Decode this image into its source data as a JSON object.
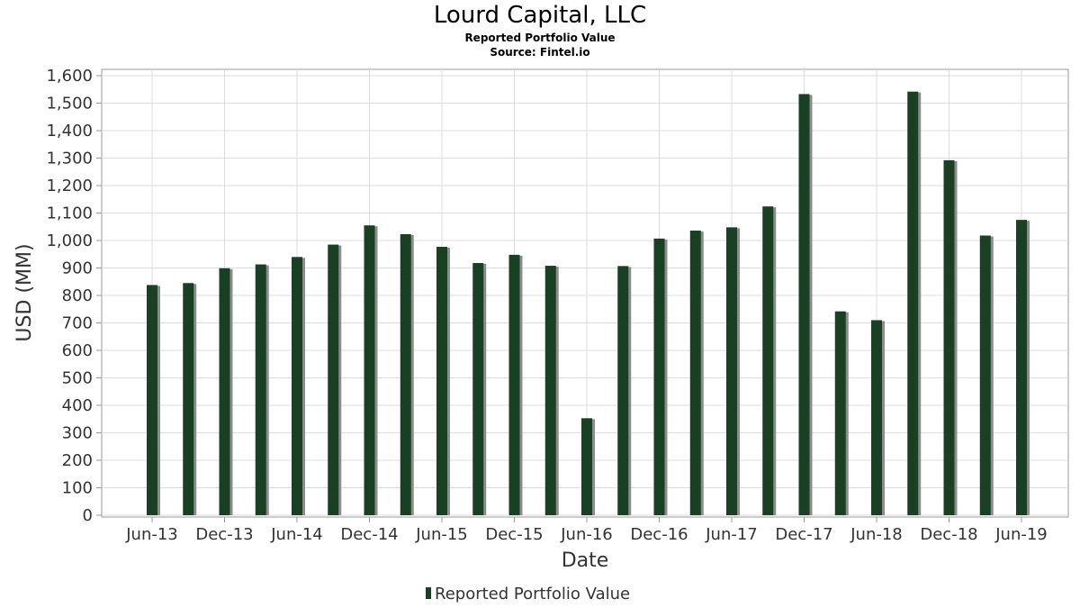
{
  "chart_data": {
    "type": "bar",
    "title": "Lourd Capital, LLC",
    "subtitle": "Reported Portfolio Value",
    "source": "Source: Fintel.io",
    "xlabel": "Date",
    "ylabel": "USD (MM)",
    "ylim": [
      0,
      1600
    ],
    "yticks": [
      "0",
      "100",
      "200",
      "300",
      "400",
      "500",
      "600",
      "700",
      "800",
      "900",
      "1,000",
      "1,100",
      "1,200",
      "1,300",
      "1,400",
      "1,500",
      "1,600"
    ],
    "xtick_labels": [
      "Jun-13",
      "Dec-13",
      "Jun-14",
      "Dec-14",
      "Jun-15",
      "Dec-15",
      "Jun-16",
      "Dec-16",
      "Jun-17",
      "Dec-17",
      "Jun-18",
      "Dec-18",
      "Jun-19"
    ],
    "grid": true,
    "legend_position": "bottom-center",
    "series": [
      {
        "name": "Reported Portfolio Value",
        "color": "#1a4024",
        "values": [
          838,
          845,
          899,
          913,
          940,
          985,
          1055,
          1023,
          977,
          918,
          948,
          908,
          353,
          907,
          1007,
          1036,
          1048,
          1124,
          1533,
          742,
          710,
          1542,
          1292,
          1018,
          1075
        ]
      }
    ]
  }
}
